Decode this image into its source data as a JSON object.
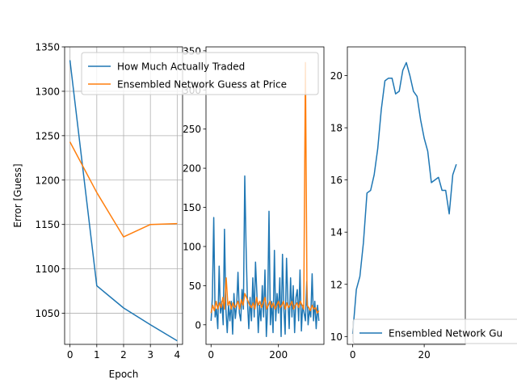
{
  "chart_data": [
    {
      "type": "line",
      "xlabel": "Epoch",
      "ylabel": "Error [Guess]",
      "xlim": [
        -0.2,
        4.2
      ],
      "ylim": [
        1015,
        1350
      ],
      "xticks": [
        0,
        1,
        2,
        3,
        4
      ],
      "yticks": [
        1050,
        1100,
        1150,
        1200,
        1250,
        1300,
        1350
      ],
      "grid": true,
      "legend_position": "upper-right",
      "series": [
        {
          "name": "How Much Actually Traded",
          "color": "#1f77b4",
          "x": [
            0,
            1,
            2,
            3,
            4
          ],
          "y": [
            1335,
            1081,
            1056,
            1037,
            1019
          ]
        },
        {
          "name": "Ensembled Network Guess at Price",
          "color": "#ff7f0e",
          "x": [
            0,
            1,
            2,
            3,
            4
          ],
          "y": [
            1243,
            1186,
            1136,
            1150,
            1151
          ]
        }
      ]
    },
    {
      "type": "line",
      "xlim": [
        -15,
        335
      ],
      "ylim": [
        -25,
        355
      ],
      "xticks": [
        0,
        200
      ],
      "yticks": [
        0,
        50,
        100,
        150,
        200,
        250,
        300,
        350
      ],
      "grid": false,
      "series": [
        {
          "name": "How Much Actually Traded",
          "color": "#1f77b4",
          "x": [
            0,
            4,
            8,
            12,
            16,
            20,
            24,
            28,
            32,
            36,
            40,
            44,
            48,
            52,
            56,
            60,
            64,
            68,
            72,
            76,
            80,
            84,
            88,
            92,
            96,
            100,
            104,
            108,
            112,
            116,
            120,
            124,
            128,
            132,
            136,
            140,
            144,
            148,
            152,
            156,
            160,
            164,
            168,
            172,
            176,
            180,
            184,
            188,
            192,
            196,
            200,
            204,
            208,
            212,
            216,
            220,
            224,
            228,
            232,
            236,
            240,
            244,
            248,
            252,
            256,
            260,
            264,
            268,
            272,
            276,
            280,
            284,
            288,
            292,
            296,
            300,
            304,
            308,
            312,
            316,
            320
          ],
          "y": [
            5,
            35,
            137,
            10,
            20,
            -5,
            75,
            15,
            30,
            0,
            122,
            20,
            -10,
            25,
            5,
            30,
            -12,
            40,
            8,
            25,
            67,
            15,
            5,
            45,
            20,
            190,
            100,
            30,
            -5,
            35,
            5,
            60,
            10,
            80,
            40,
            -10,
            25,
            5,
            50,
            10,
            70,
            -15,
            20,
            145,
            0,
            30,
            -10,
            95,
            5,
            40,
            15,
            60,
            -15,
            90,
            20,
            -12,
            85,
            30,
            -5,
            60,
            10,
            50,
            -10,
            35,
            45,
            5,
            70,
            -8,
            25,
            15,
            5,
            55,
            0,
            20,
            10,
            65,
            5,
            30,
            -5,
            25,
            5
          ]
        },
        {
          "name": "Ensembled Network Guess at Price",
          "color": "#ff7f0e",
          "x": [
            0,
            5,
            10,
            15,
            20,
            25,
            30,
            35,
            40,
            45,
            50,
            55,
            60,
            65,
            70,
            75,
            80,
            85,
            90,
            95,
            100,
            105,
            110,
            115,
            120,
            125,
            130,
            135,
            140,
            145,
            150,
            155,
            160,
            165,
            170,
            175,
            180,
            185,
            190,
            195,
            200,
            205,
            210,
            215,
            220,
            225,
            230,
            235,
            240,
            245,
            250,
            255,
            260,
            265,
            270,
            275,
            280,
            285,
            290,
            295,
            300,
            305,
            310,
            315,
            320
          ],
          "y": [
            15,
            25,
            18,
            30,
            20,
            28,
            22,
            35,
            20,
            60,
            25,
            30,
            20,
            28,
            22,
            25,
            30,
            20,
            32,
            25,
            40,
            35,
            30,
            25,
            22,
            28,
            20,
            35,
            25,
            30,
            22,
            28,
            35,
            20,
            25,
            30,
            22,
            28,
            20,
            25,
            30,
            22,
            25,
            30,
            20,
            28,
            22,
            25,
            30,
            20,
            25,
            28,
            22,
            30,
            25,
            20,
            335,
            25,
            22,
            18,
            25,
            20,
            22,
            15,
            18
          ]
        }
      ]
    },
    {
      "type": "line",
      "xlim": [
        -1.5,
        31.5
      ],
      "ylim": [
        9.7,
        21.1
      ],
      "xticks": [
        0,
        20
      ],
      "yticks": [
        10,
        12,
        14,
        16,
        18,
        20
      ],
      "grid": false,
      "legend_position": "lower-right",
      "series": [
        {
          "name": "Ensembled Network Gu",
          "color": "#1f77b4",
          "x": [
            0,
            1,
            2,
            3,
            4,
            5,
            6,
            7,
            8,
            9,
            10,
            11,
            12,
            13,
            14,
            15,
            16,
            17,
            18,
            19,
            20,
            21,
            22,
            23,
            24,
            25,
            26,
            27,
            28,
            29
          ],
          "y": [
            10.1,
            11.8,
            12.3,
            13.6,
            15.5,
            15.6,
            16.2,
            17.2,
            18.7,
            19.8,
            19.9,
            19.9,
            19.3,
            19.4,
            20.2,
            20.5,
            20.0,
            19.4,
            19.2,
            18.3,
            17.6,
            17.1,
            15.9,
            16.0,
            16.1,
            15.6,
            15.6,
            14.7,
            16.2,
            16.6
          ]
        }
      ]
    }
  ]
}
